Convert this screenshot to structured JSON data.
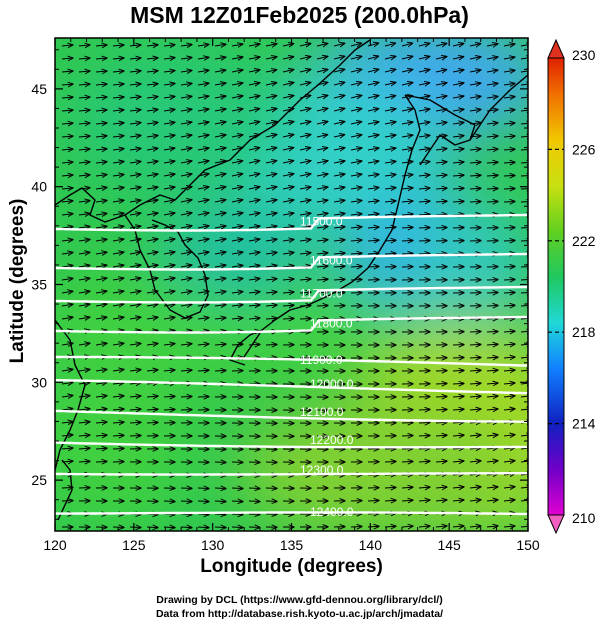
{
  "title": "MSM 12Z01Feb2025 (200.0hPa)",
  "x_axis": {
    "label": "Longitude (degrees)",
    "ticks": [
      {
        "value": 120,
        "label": "120"
      },
      {
        "value": 125,
        "label": "125"
      },
      {
        "value": 130,
        "label": "130"
      },
      {
        "value": 135,
        "label": "135"
      },
      {
        "value": 140,
        "label": "140"
      },
      {
        "value": 145,
        "label": "145"
      },
      {
        "value": 150,
        "label": "150"
      }
    ]
  },
  "y_axis": {
    "label": "Latitude  (degrees)",
    "ticks": [
      {
        "value": 25,
        "label": "25"
      },
      {
        "value": 30,
        "label": "30"
      },
      {
        "value": 35,
        "label": "35"
      },
      {
        "value": 40,
        "label": "40"
      },
      {
        "value": 45,
        "label": "45"
      }
    ]
  },
  "map": {
    "lon_range": [
      120,
      150
    ],
    "lat_range": [
      22.4,
      47.6
    ],
    "contour_field": "geopotential height",
    "shaded_field": "temperature (K)",
    "vector_field": "wind",
    "contours": [
      {
        "value": 11500,
        "label": "11500.0"
      },
      {
        "value": 11600,
        "label": "11600.0"
      },
      {
        "value": 11700,
        "label": "11700.0"
      },
      {
        "value": 11800,
        "label": "11800.0"
      },
      {
        "value": 11900,
        "label": "11900.0"
      },
      {
        "value": 12000,
        "label": "12000.0"
      },
      {
        "value": 12100,
        "label": "12100.0"
      },
      {
        "value": 12200,
        "label": "12200.0"
      },
      {
        "value": 12300,
        "label": "12300.0"
      },
      {
        "value": 12400,
        "label": "12400.0"
      }
    ]
  },
  "colorbar": {
    "range": [
      210,
      230
    ],
    "ticks": [
      {
        "value": 210,
        "label": "210"
      },
      {
        "value": 214,
        "label": "214"
      },
      {
        "value": 218,
        "label": "218"
      },
      {
        "value": 222,
        "label": "222"
      },
      {
        "value": 226,
        "label": "226"
      },
      {
        "value": 230,
        "label": "230"
      }
    ]
  },
  "credits": {
    "line1": "Drawing by DCL (https://www.gfd-dennou.org/library/dcl/)",
    "line2": "Data from http://database.rish.kyoto-u.ac.jp/arch/jmadata/"
  }
}
